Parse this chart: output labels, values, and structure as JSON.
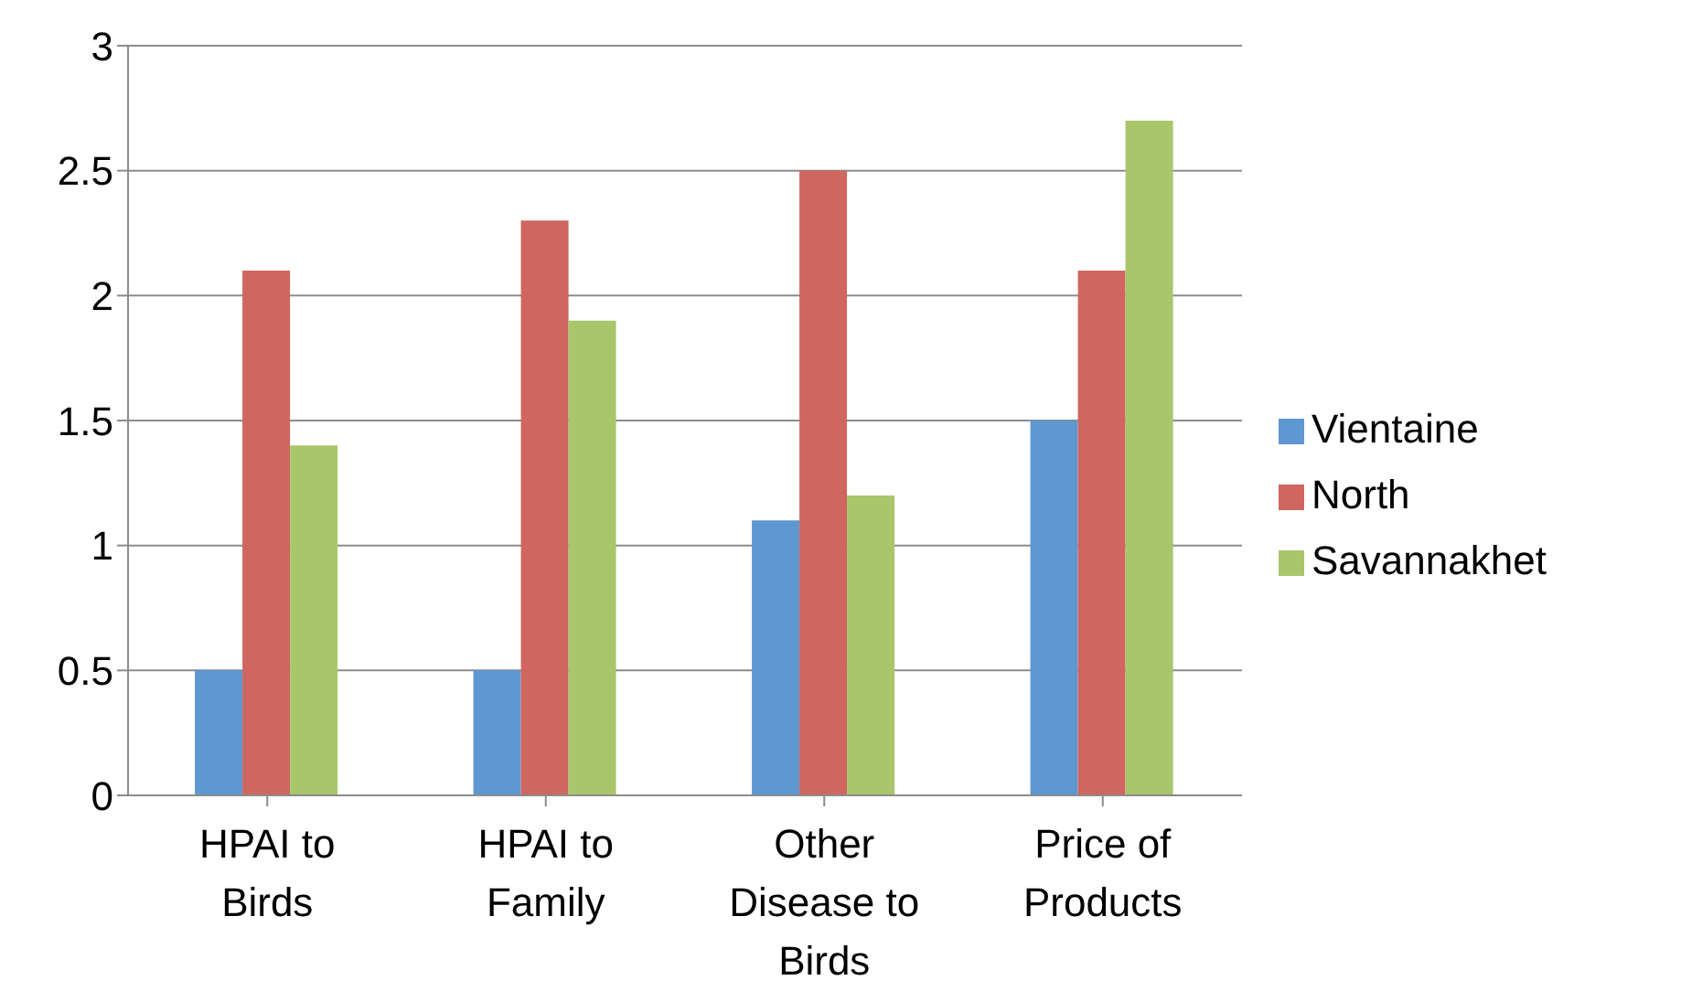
{
  "chart_data": {
    "type": "bar",
    "categories": [
      "HPAI to Birds",
      "HPAI to Family",
      "Other Disease to Birds",
      "Price of Products"
    ],
    "series": [
      {
        "name": "Vientaine",
        "color": "#5f97d0",
        "values": [
          0.5,
          0.5,
          1.1,
          1.5
        ]
      },
      {
        "name": "North",
        "color": "#cf665f",
        "values": [
          2.1,
          2.3,
          2.5,
          2.1
        ]
      },
      {
        "name": "Savannakhet",
        "color": "#a9c66b",
        "values": [
          1.4,
          1.9,
          1.2,
          2.7
        ]
      }
    ],
    "ylim": [
      0,
      3
    ],
    "yticks": [
      0,
      0.5,
      1,
      1.5,
      2,
      2.5,
      3
    ],
    "grid": "y",
    "legend": "right"
  }
}
